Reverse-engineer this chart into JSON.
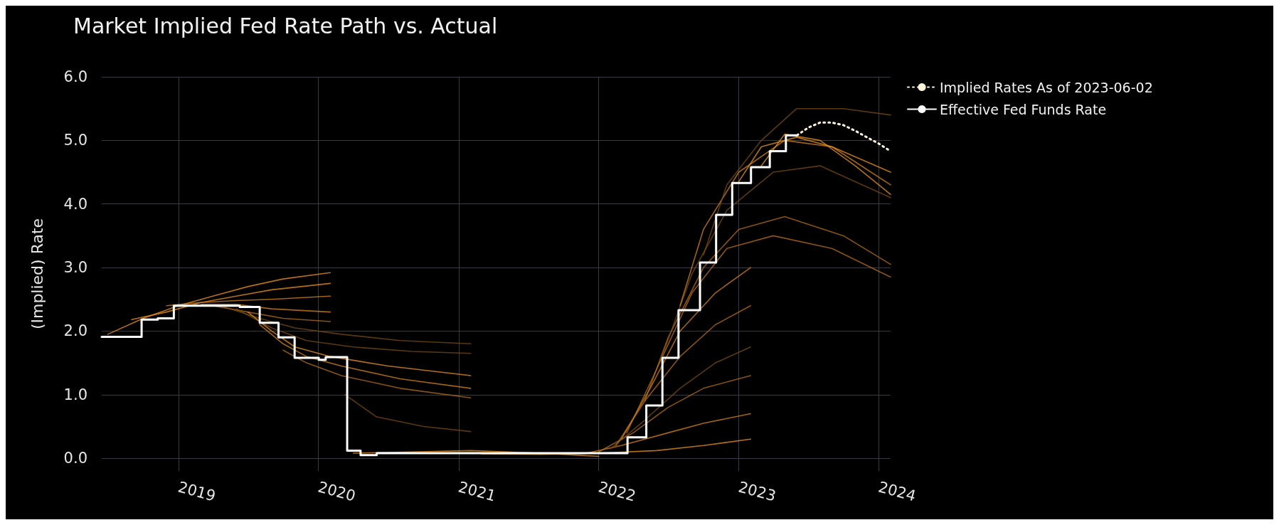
{
  "chart_data": {
    "type": "line",
    "title": "Market Implied Fed Rate Path vs. Actual",
    "ylabel": "(Implied) Rate",
    "xlim": [
      "2018-06-15",
      "2024-02-01"
    ],
    "xticks": [
      "2019",
      "2020",
      "2021",
      "2022",
      "2023",
      "2024"
    ],
    "ylim": [
      -0.2,
      6.0
    ],
    "yticks": [
      {
        "value": 0,
        "label": "0.0"
      },
      {
        "value": 1,
        "label": "1.0"
      },
      {
        "value": 2,
        "label": "2.0"
      },
      {
        "value": 3,
        "label": "3.0"
      },
      {
        "value": 4,
        "label": "4.0"
      },
      {
        "value": 5,
        "label": "5.0"
      },
      {
        "value": 6,
        "label": "6.0"
      }
    ],
    "grid": true,
    "legend": "top right",
    "marker": "none",
    "series": [
      {
        "color": "#f0961e",
        "x": [
          "2018-07-01",
          "2018-10-01",
          "2019-01-01",
          "2019-04-01",
          "2019-07-01",
          "2019-10-01",
          "2020-02-01"
        ],
        "values": [
          1.95,
          2.2,
          2.4,
          2.55,
          2.7,
          2.82,
          2.92
        ]
      },
      {
        "color": "#f0961e",
        "x": [
          "2018-09-01",
          "2018-12-01",
          "2019-03-01",
          "2019-06-01",
          "2019-09-01",
          "2020-02-01"
        ],
        "values": [
          2.18,
          2.3,
          2.45,
          2.55,
          2.65,
          2.75
        ]
      },
      {
        "color": "#d9851a",
        "x": [
          "2018-12-01",
          "2019-03-01",
          "2019-06-01",
          "2019-09-01",
          "2020-02-01"
        ],
        "values": [
          2.4,
          2.45,
          2.48,
          2.5,
          2.55
        ]
      },
      {
        "color": "#d9851a",
        "x": [
          "2019-03-01",
          "2019-06-01",
          "2019-09-01",
          "2020-02-01"
        ],
        "values": [
          2.42,
          2.42,
          2.35,
          2.3
        ]
      },
      {
        "color": "#b8701a",
        "x": [
          "2019-04-01",
          "2019-07-01",
          "2019-10-01",
          "2020-02-01"
        ],
        "values": [
          2.4,
          2.3,
          2.2,
          2.15
        ]
      },
      {
        "color": "#7a4c14",
        "x": [
          "2019-05-01",
          "2019-08-01",
          "2019-11-01",
          "2020-03-01",
          "2020-08-01",
          "2021-02-01"
        ],
        "values": [
          2.38,
          2.2,
          2.05,
          1.95,
          1.85,
          1.8
        ]
      },
      {
        "color": "#7a4c14",
        "x": [
          "2019-06-01",
          "2019-09-01",
          "2019-12-01",
          "2020-04-01",
          "2020-09-01",
          "2021-02-01"
        ],
        "values": [
          2.35,
          2.05,
          1.85,
          1.75,
          1.68,
          1.65
        ]
      },
      {
        "color": "#f0961e",
        "x": [
          "2019-07-01",
          "2019-09-01",
          "2019-11-01",
          "2020-02-01",
          "2020-07-01",
          "2021-02-01"
        ],
        "values": [
          2.3,
          2.0,
          1.75,
          1.6,
          1.45,
          1.3
        ]
      },
      {
        "color": "#d9851a",
        "x": [
          "2019-08-01",
          "2019-10-01",
          "2019-12-01",
          "2020-03-01",
          "2020-08-01",
          "2021-02-01"
        ],
        "values": [
          2.1,
          1.8,
          1.6,
          1.45,
          1.25,
          1.1
        ]
      },
      {
        "color": "#b8701a",
        "x": [
          "2019-10-01",
          "2019-12-01",
          "2020-03-01",
          "2020-08-01",
          "2021-02-01"
        ],
        "values": [
          1.7,
          1.5,
          1.3,
          1.1,
          0.95
        ]
      },
      {
        "color": "#7a4c14",
        "x": [
          "2020-03-10",
          "2020-06-01",
          "2020-10-01",
          "2021-02-01"
        ],
        "values": [
          1.0,
          0.65,
          0.5,
          0.42
        ]
      },
      {
        "color": "#f0961e",
        "x": [
          "2020-04-01",
          "2020-09-01",
          "2021-02-01",
          "2021-08-01",
          "2022-01-01"
        ],
        "values": [
          0.08,
          0.1,
          0.12,
          0.08,
          0.03
        ]
      },
      {
        "color": "#f0961e",
        "x": [
          "2021-03-01",
          "2021-08-01",
          "2022-01-01",
          "2022-06-01",
          "2022-10-01",
          "2023-02-01"
        ],
        "values": [
          0.07,
          0.06,
          0.08,
          0.12,
          0.2,
          0.3
        ]
      },
      {
        "color": "#d9851a",
        "x": [
          "2021-12-01",
          "2022-03-01",
          "2022-07-01",
          "2022-10-01",
          "2023-02-01"
        ],
        "values": [
          0.08,
          0.2,
          0.4,
          0.55,
          0.7
        ]
      },
      {
        "color": "#b8701a",
        "x": [
          "2022-01-01",
          "2022-04-01",
          "2022-07-01",
          "2022-10-01",
          "2023-02-01"
        ],
        "values": [
          0.1,
          0.4,
          0.8,
          1.1,
          1.3
        ]
      },
      {
        "color": "#7a4c14",
        "x": [
          "2022-02-01",
          "2022-05-01",
          "2022-08-01",
          "2022-11-01",
          "2023-02-01"
        ],
        "values": [
          0.15,
          0.6,
          1.1,
          1.5,
          1.75
        ]
      },
      {
        "color": "#b8701a",
        "x": [
          "2022-02-15",
          "2022-05-01",
          "2022-08-01",
          "2022-11-01",
          "2023-02-01"
        ],
        "values": [
          0.2,
          0.9,
          1.6,
          2.1,
          2.4
        ]
      },
      {
        "color": "#d9851a",
        "x": [
          "2022-03-01",
          "2022-05-15",
          "2022-08-01",
          "2022-11-01",
          "2023-02-01"
        ],
        "values": [
          0.3,
          1.1,
          2.0,
          2.6,
          3.0
        ]
      },
      {
        "color": "#b8701a",
        "x": [
          "2022-03-15",
          "2022-06-01",
          "2022-09-01",
          "2022-12-01",
          "2023-04-01",
          "2023-09-01",
          "2024-02-01"
        ],
        "values": [
          0.4,
          1.4,
          2.6,
          3.3,
          3.5,
          3.3,
          2.85
        ]
      },
      {
        "color": "#b8701a",
        "x": [
          "2022-05-01",
          "2022-07-01",
          "2022-10-01",
          "2023-01-01",
          "2023-05-01",
          "2023-10-01",
          "2024-02-01"
        ],
        "values": [
          0.9,
          1.9,
          3.0,
          3.6,
          3.8,
          3.5,
          3.05
        ]
      },
      {
        "color": "#7a4c14",
        "x": [
          "2022-06-15",
          "2022-09-01",
          "2022-12-01",
          "2023-04-01",
          "2023-08-01",
          "2024-02-01"
        ],
        "values": [
          1.6,
          2.9,
          3.9,
          4.5,
          4.6,
          4.1
        ]
      },
      {
        "color": "#d9851a",
        "x": [
          "2022-08-01",
          "2022-10-01",
          "2023-01-01",
          "2023-05-01",
          "2023-09-01",
          "2024-02-01"
        ],
        "values": [
          2.4,
          3.6,
          4.5,
          5.0,
          4.9,
          4.3
        ]
      },
      {
        "color": "#7a4c14",
        "x": [
          "2022-10-01",
          "2022-12-01",
          "2023-03-01",
          "2023-06-01",
          "2023-10-01",
          "2024-02-01"
        ],
        "values": [
          3.2,
          4.3,
          5.0,
          5.5,
          5.5,
          5.4
        ]
      },
      {
        "color": "#f0961e",
        "x": [
          "2023-01-01",
          "2023-03-01",
          "2023-06-01",
          "2023-09-01",
          "2024-02-01"
        ],
        "values": [
          4.35,
          4.9,
          5.05,
          4.9,
          4.5
        ]
      },
      {
        "color": "#f0961e",
        "x": [
          "2023-03-01",
          "2023-05-01",
          "2023-08-01",
          "2023-11-01",
          "2024-02-01"
        ],
        "values": [
          4.6,
          5.1,
          5.0,
          4.6,
          4.15
        ]
      },
      {
        "name": "Implied Rates As of 2023-06-02",
        "color": "#fff5dc",
        "line_style": "dotted",
        "x": [
          "2023-06-02",
          "2023-07-01",
          "2023-08-01",
          "2023-09-01",
          "2023-10-01",
          "2023-11-01",
          "2023-12-01",
          "2024-01-01",
          "2024-02-01"
        ],
        "values": [
          5.08,
          5.2,
          5.28,
          5.28,
          5.24,
          5.15,
          5.05,
          4.95,
          4.83
        ]
      },
      {
        "name": "Effective Fed Funds Rate",
        "type": "step",
        "color": "#ffffff",
        "line_style": "solid",
        "x": [
          "2018-06-15",
          "2018-09-27",
          "2018-11-08",
          "2018-12-20",
          "2019-06-10",
          "2019-08-01",
          "2019-09-19",
          "2019-10-31",
          "2020-01-02",
          "2020-01-20",
          "2020-03-16",
          "2020-04-20",
          "2020-06-01",
          "2022-03-17",
          "2022-05-05",
          "2022-06-16",
          "2022-07-28",
          "2022-09-22",
          "2022-11-03",
          "2022-12-15",
          "2023-02-02",
          "2023-03-23",
          "2023-05-04",
          "2023-06-02"
        ],
        "values": [
          1.91,
          2.18,
          2.2,
          2.4,
          2.38,
          2.13,
          1.9,
          1.58,
          1.55,
          1.59,
          0.12,
          0.05,
          0.08,
          0.33,
          0.83,
          1.58,
          2.33,
          3.08,
          3.83,
          4.33,
          4.58,
          4.83,
          5.08,
          5.08
        ]
      }
    ]
  }
}
